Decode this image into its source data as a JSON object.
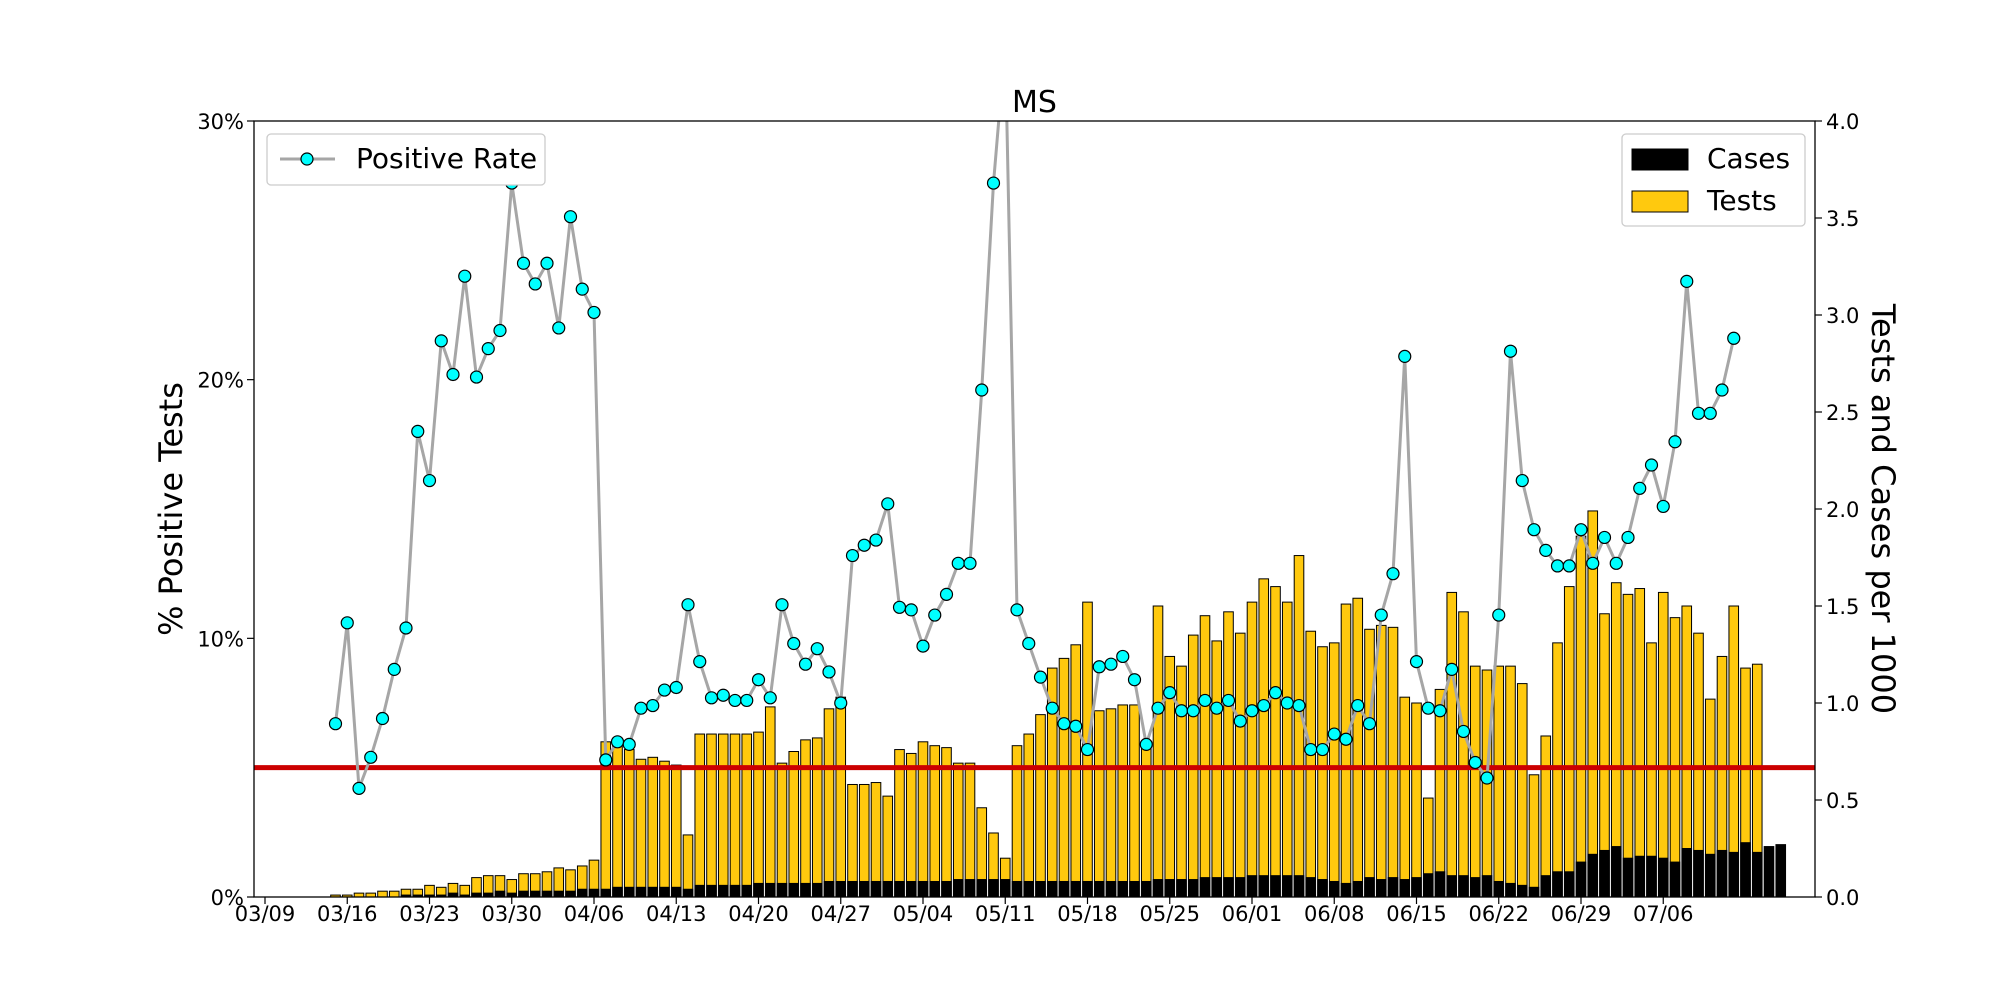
{
  "chart_data": {
    "type": "bar",
    "title": "MS",
    "ylabel_left": "% Positive Tests",
    "ylabel_right": "Tests and Cases per 1000",
    "xlabel": "",
    "x_start_date": "03/09",
    "x_tick_labels": [
      "03/09",
      "03/16",
      "03/23",
      "03/30",
      "04/06",
      "04/13",
      "04/20",
      "04/27",
      "05/04",
      "05/11",
      "05/18",
      "05/25",
      "06/01",
      "06/08",
      "06/15",
      "06/22",
      "06/29",
      "07/06"
    ],
    "y_left_ticks": [
      "0%",
      "10%",
      "20%",
      "30%"
    ],
    "y_left_lim": [
      0,
      30
    ],
    "y_right_ticks": [
      "0.0",
      "0.5",
      "1.0",
      "1.5",
      "2.0",
      "2.5",
      "3.0",
      "3.5",
      "4.0"
    ],
    "y_right_lim": [
      0,
      4
    ],
    "threshold_line": 5,
    "threshold_color": "#cc0000",
    "grid": false,
    "legend_left": {
      "placement": "top-left",
      "label": "Positive Rate"
    },
    "legend_right": {
      "placement": "top-right",
      "items": [
        "Cases",
        "Tests"
      ]
    },
    "colors": {
      "tests": "#ffc90e",
      "cases": "#000000",
      "rate_line": "#a6a6a6",
      "rate_marker": "#00ffff"
    },
    "series": [
      {
        "name": "Tests",
        "first_day_offset": 6,
        "values": [
          0.01,
          0.01,
          0.02,
          0.02,
          0.03,
          0.03,
          0.04,
          0.04,
          0.06,
          0.05,
          0.07,
          0.06,
          0.1,
          0.11,
          0.11,
          0.09,
          0.12,
          0.12,
          0.13,
          0.15,
          0.14,
          0.16,
          0.19,
          0.8,
          0.78,
          0.76,
          0.71,
          0.72,
          0.7,
          0.68,
          0.32,
          0.84,
          0.84,
          0.84,
          0.84,
          0.84,
          0.85,
          0.98,
          0.69,
          0.75,
          0.81,
          0.82,
          0.97,
          1.03,
          0.58,
          0.58,
          0.59,
          0.52,
          0.76,
          0.74,
          0.8,
          0.78,
          0.77,
          0.69,
          0.69,
          0.46,
          0.33,
          0.2,
          0.78,
          0.84,
          0.94,
          1.18,
          1.23,
          1.3,
          1.52,
          0.96,
          0.97,
          0.99,
          0.99,
          0.79,
          1.5,
          1.24,
          1.19,
          1.35,
          1.45,
          1.32,
          1.47,
          1.36,
          1.52,
          1.64,
          1.6,
          1.52,
          1.76,
          1.37,
          1.29,
          1.31,
          1.51,
          1.54,
          1.38,
          1.4,
          1.39,
          1.03,
          1.0,
          0.51,
          1.07,
          1.57,
          1.47,
          1.19,
          1.17,
          1.19,
          1.19,
          1.1,
          0.63,
          0.83,
          1.31,
          1.6,
          1.86,
          1.99,
          1.46,
          1.62,
          1.56,
          1.59,
          1.31,
          1.57,
          1.44,
          1.5,
          1.36,
          1.02,
          1.24,
          1.5,
          1.18,
          1.2
        ]
      },
      {
        "name": "Cases",
        "first_day_offset": 6,
        "values": [
          0.0,
          0.0,
          0.0,
          0.0,
          0.0,
          0.0,
          0.01,
          0.01,
          0.01,
          0.01,
          0.02,
          0.01,
          0.02,
          0.02,
          0.03,
          0.02,
          0.03,
          0.03,
          0.03,
          0.03,
          0.03,
          0.04,
          0.04,
          0.04,
          0.05,
          0.05,
          0.05,
          0.05,
          0.05,
          0.05,
          0.04,
          0.06,
          0.06,
          0.06,
          0.06,
          0.06,
          0.07,
          0.07,
          0.07,
          0.07,
          0.07,
          0.07,
          0.08,
          0.08,
          0.08,
          0.08,
          0.08,
          0.08,
          0.08,
          0.08,
          0.08,
          0.08,
          0.08,
          0.09,
          0.09,
          0.09,
          0.09,
          0.09,
          0.08,
          0.08,
          0.08,
          0.08,
          0.08,
          0.08,
          0.08,
          0.08,
          0.08,
          0.08,
          0.08,
          0.08,
          0.09,
          0.09,
          0.09,
          0.09,
          0.1,
          0.1,
          0.1,
          0.1,
          0.11,
          0.11,
          0.11,
          0.11,
          0.11,
          0.1,
          0.09,
          0.08,
          0.07,
          0.08,
          0.1,
          0.09,
          0.1,
          0.09,
          0.1,
          0.12,
          0.13,
          0.11,
          0.11,
          0.1,
          0.11,
          0.08,
          0.07,
          0.06,
          0.05,
          0.11,
          0.13,
          0.13,
          0.18,
          0.22,
          0.24,
          0.26,
          0.2,
          0.21,
          0.21,
          0.2,
          0.18,
          0.25,
          0.24,
          0.22,
          0.24,
          0.23,
          0.28,
          0.23,
          0.26,
          0.27
        ]
      },
      {
        "name": "Positive Rate",
        "first_day_offset": 6,
        "values": [
          6.7,
          10.6,
          4.2,
          5.4,
          6.9,
          8.8,
          10.4,
          18.0,
          16.1,
          21.5,
          20.2,
          24.0,
          20.1,
          21.2,
          21.9,
          27.6,
          24.5,
          23.7,
          24.5,
          22.0,
          26.3,
          23.5,
          22.6,
          5.3,
          6.0,
          5.9,
          7.3,
          7.4,
          8.0,
          8.1,
          11.3,
          9.1,
          7.7,
          7.8,
          7.6,
          7.6,
          8.4,
          7.7,
          11.3,
          9.8,
          9.0,
          9.6,
          8.7,
          7.5,
          13.2,
          13.6,
          13.8,
          15.2,
          11.2,
          11.1,
          9.7,
          10.9,
          11.7,
          12.9,
          12.9,
          19.6,
          27.6,
          33.0,
          11.1,
          9.8,
          8.5,
          7.3,
          6.7,
          6.6,
          5.7,
          8.9,
          9.0,
          9.3,
          8.4,
          5.9,
          7.3,
          7.9,
          7.2,
          7.2,
          7.6,
          7.3,
          7.6,
          6.8,
          7.2,
          7.4,
          7.9,
          7.5,
          7.4,
          5.7,
          5.7,
          6.3,
          6.1,
          7.4,
          6.7,
          10.9,
          12.5,
          20.9,
          9.1,
          7.3,
          7.2,
          8.8,
          6.4,
          5.2,
          4.6,
          10.9,
          21.1,
          16.1,
          14.2,
          13.4,
          12.8,
          12.8,
          14.2,
          12.9,
          13.9,
          12.9,
          13.9,
          15.8,
          16.7,
          15.1,
          17.6,
          23.8,
          18.7,
          18.7,
          19.6,
          21.6
        ]
      }
    ]
  }
}
